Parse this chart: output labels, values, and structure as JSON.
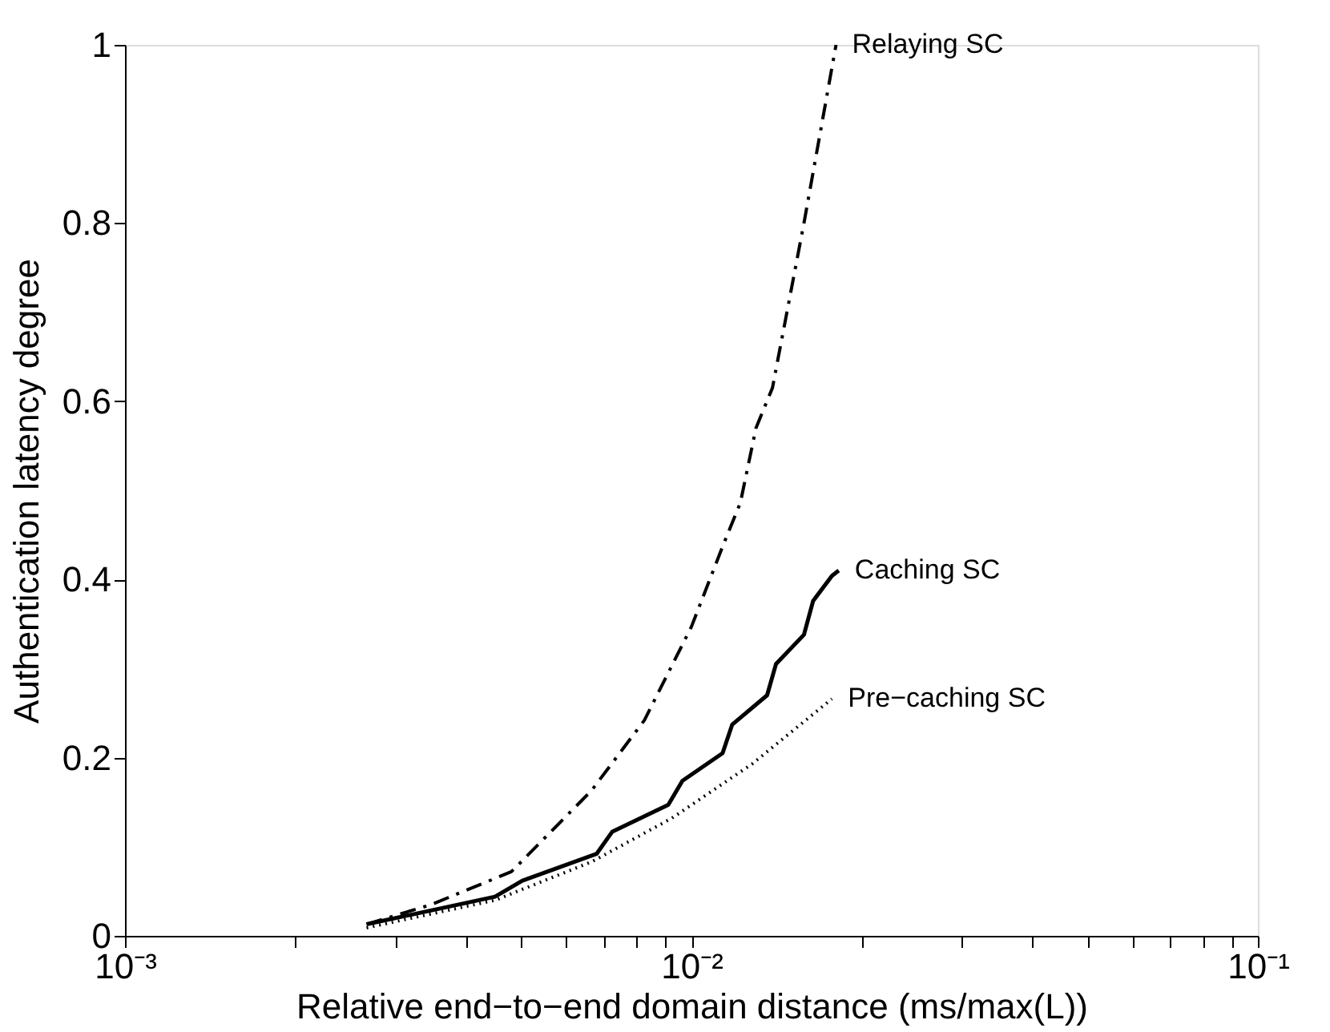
{
  "chart_data": {
    "type": "line",
    "xlabel": "Relative end−to−end domain distance (ms/max(L))",
    "ylabel": "Authentication latency degree",
    "log": "x",
    "xlim": [
      0.001,
      0.1
    ],
    "ylim": [
      0,
      1
    ],
    "xticks": [
      {
        "value": 0.001,
        "label": "10⁻³"
      },
      {
        "value": 0.002,
        "label": null
      },
      {
        "value": 0.003,
        "label": null
      },
      {
        "value": 0.004,
        "label": null
      },
      {
        "value": 0.005,
        "label": null
      },
      {
        "value": 0.006,
        "label": null
      },
      {
        "value": 0.007,
        "label": null
      },
      {
        "value": 0.008,
        "label": null
      },
      {
        "value": 0.009,
        "label": null
      },
      {
        "value": 0.01,
        "label": "10⁻²"
      },
      {
        "value": 0.02,
        "label": null
      },
      {
        "value": 0.03,
        "label": null
      },
      {
        "value": 0.04,
        "label": null
      },
      {
        "value": 0.05,
        "label": null
      },
      {
        "value": 0.06,
        "label": null
      },
      {
        "value": 0.07,
        "label": null
      },
      {
        "value": 0.08,
        "label": null
      },
      {
        "value": 0.09,
        "label": null
      },
      {
        "value": 0.1,
        "label": "10⁻¹"
      }
    ],
    "yticks": [
      0,
      0.2,
      0.4,
      0.6,
      0.8,
      1
    ],
    "grid": false,
    "marker": "none",
    "series": [
      {
        "name": "Relaying SC",
        "color": "#000000",
        "line_style": "dashed",
        "x": [
          0.00267,
          0.00347,
          0.00481,
          0.00666,
          0.00826,
          0.01,
          0.0114,
          0.0122,
          0.013,
          0.0139,
          0.0158,
          0.018
        ],
        "values": [
          0.013,
          0.035,
          0.072,
          0.163,
          0.242,
          0.347,
          0.44,
          0.486,
          0.57,
          0.615,
          0.8,
          1.0
        ]
      },
      {
        "name": "Caching SC",
        "color": "#000000",
        "line_style": "solid",
        "x": [
          0.00267,
          0.0045,
          0.00503,
          0.0068,
          0.00725,
          0.0091,
          0.00964,
          0.01135,
          0.0118,
          0.0136,
          0.0141,
          0.0158,
          0.0164,
          0.0177,
          0.0182
        ],
        "values": [
          0.013,
          0.044,
          0.062,
          0.092,
          0.117,
          0.147,
          0.174,
          0.205,
          0.237,
          0.27,
          0.305,
          0.338,
          0.376,
          0.404,
          0.41
        ]
      },
      {
        "name": "Pre−caching SC",
        "color": "#000000",
        "line_style": "dotted",
        "x": [
          0.00267,
          0.0045,
          0.00666,
          0.00923,
          0.0128,
          0.0177
        ],
        "values": [
          0.009,
          0.04,
          0.083,
          0.132,
          0.193,
          0.266
        ]
      }
    ]
  }
}
